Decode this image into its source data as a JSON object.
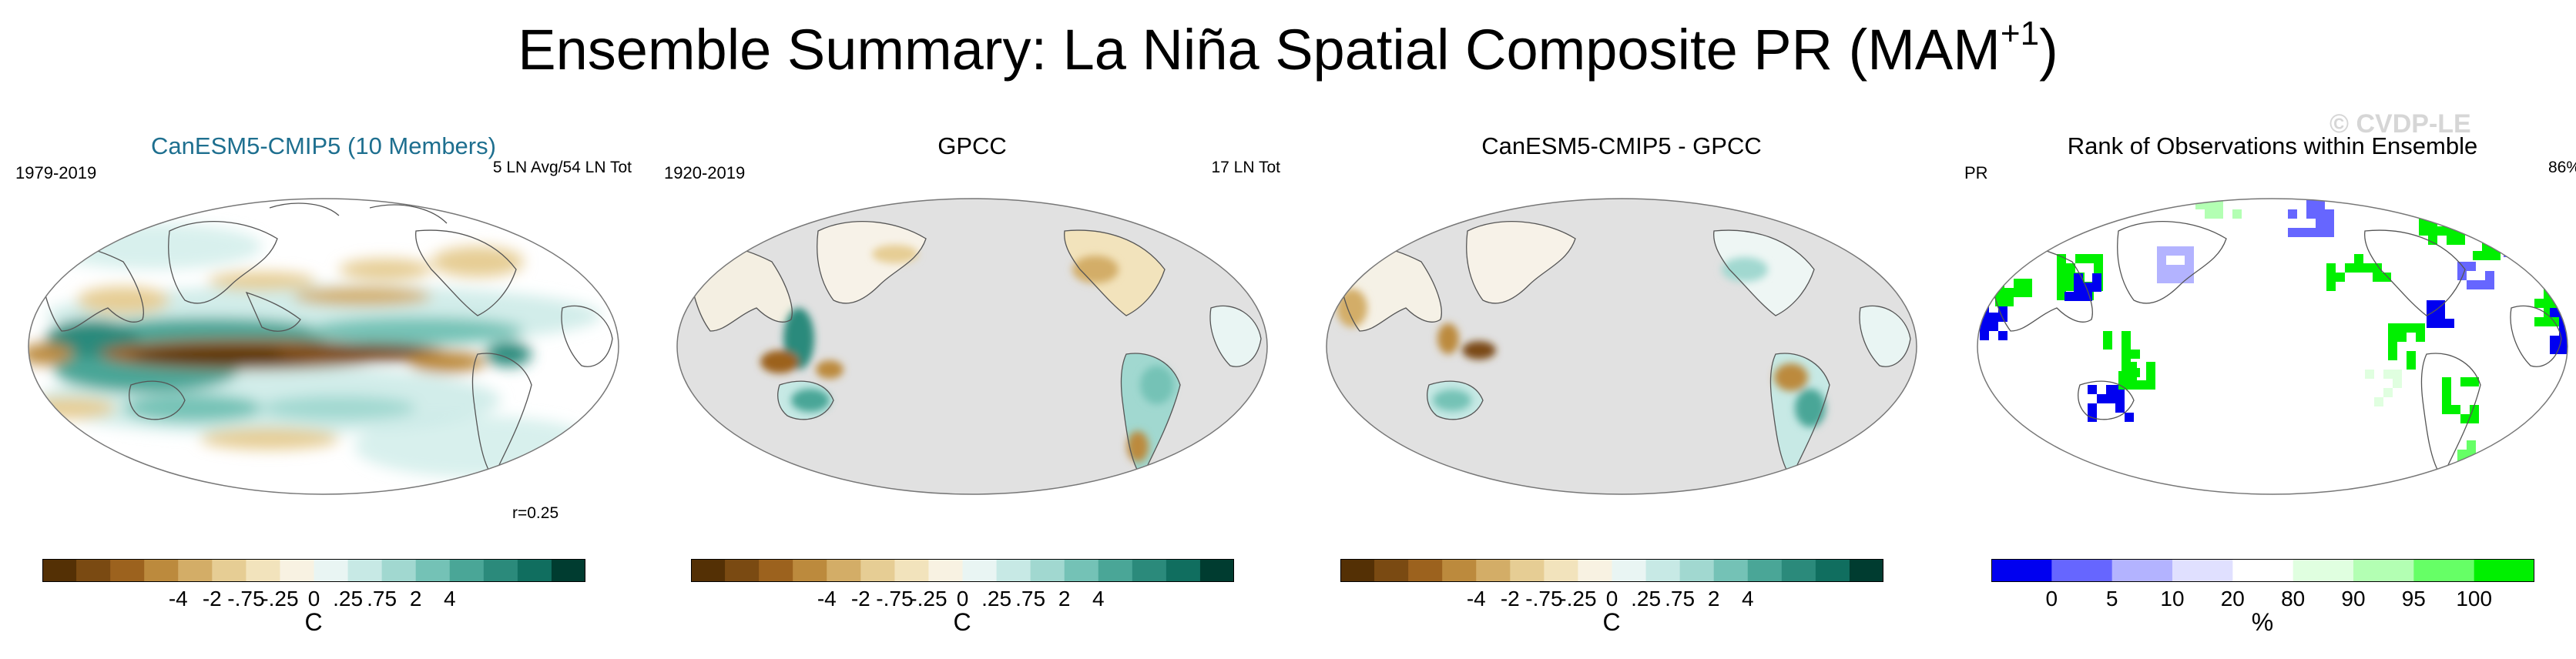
{
  "title": {
    "main": "Ensemble Summary: La Niña Spatial Composite PR (MAM",
    "sup": "+1",
    "close": ")"
  },
  "watermark": "© CVDP-LE",
  "panels": [
    {
      "title": "CanESM5-CMIP5 (10 Members)",
      "left_label": "1979-2019",
      "right_label": "5 LN Avg/54 LN Tot",
      "corr": "r=0.25"
    },
    {
      "title": "GPCC",
      "left_label": "1920-2019",
      "right_label": "17 LN Tot",
      "corr": ""
    },
    {
      "title": "CanESM5-CMIP5 - GPCC",
      "left_label": "",
      "right_label": "",
      "corr": ""
    },
    {
      "title": "Rank of Observations within Ensemble",
      "left_label": "PR",
      "right_label": "86%",
      "corr": ""
    }
  ],
  "colorbars": {
    "anomaly": {
      "labels": [
        "-4",
        "-2",
        "-.75",
        "-.25",
        "0",
        ".25",
        ".75",
        "2",
        "4"
      ],
      "unit": "C",
      "colors": [
        "#543005",
        "#7a4a12",
        "#9c621e",
        "#bc8a3d",
        "#d3ad67",
        "#e6cd94",
        "#f2e3bc",
        "#f8f2e2",
        "#e9f5f3",
        "#c7e9e5",
        "#a1d8d0",
        "#74c2b6",
        "#4aa697",
        "#2b8a7b",
        "#106e5f",
        "#003c30"
      ]
    },
    "rank": {
      "labels": [
        "0",
        "5",
        "10",
        "20",
        "80",
        "90",
        "95",
        "100"
      ],
      "unit": "%",
      "colors": [
        "#0000f0",
        "#6666ff",
        "#b3b3ff",
        "#e0e0ff",
        "#ffffff",
        "#e0ffe0",
        "#b3ffb3",
        "#66ff66",
        "#00f000"
      ]
    }
  },
  "chart_data": [
    {
      "type": "heatmap",
      "title": "CanESM5-CMIP5 (10 Members)",
      "period": "1979-2019",
      "note": "5 LN Avg/54 LN Tot",
      "pattern_correlation": 0.25,
      "colorbar_levels": [
        -4,
        -2,
        -0.75,
        -0.25,
        0,
        0.25,
        0.75,
        2,
        4
      ],
      "unit": "C"
    },
    {
      "type": "heatmap",
      "title": "GPCC",
      "period": "1920-2019",
      "note": "17 LN Tot",
      "colorbar_levels": [
        -4,
        -2,
        -0.75,
        -0.25,
        0,
        0.25,
        0.75,
        2,
        4
      ],
      "unit": "C"
    },
    {
      "type": "heatmap",
      "title": "CanESM5-CMIP5 - GPCC",
      "colorbar_levels": [
        -4,
        -2,
        -0.75,
        -0.25,
        0,
        0.25,
        0.75,
        2,
        4
      ],
      "unit": "C"
    },
    {
      "type": "heatmap",
      "title": "Rank of Observations within Ensemble",
      "variable": "PR",
      "percent": "86%",
      "colorbar_levels": [
        0,
        5,
        10,
        20,
        80,
        90,
        95,
        100
      ],
      "unit": "%"
    }
  ]
}
